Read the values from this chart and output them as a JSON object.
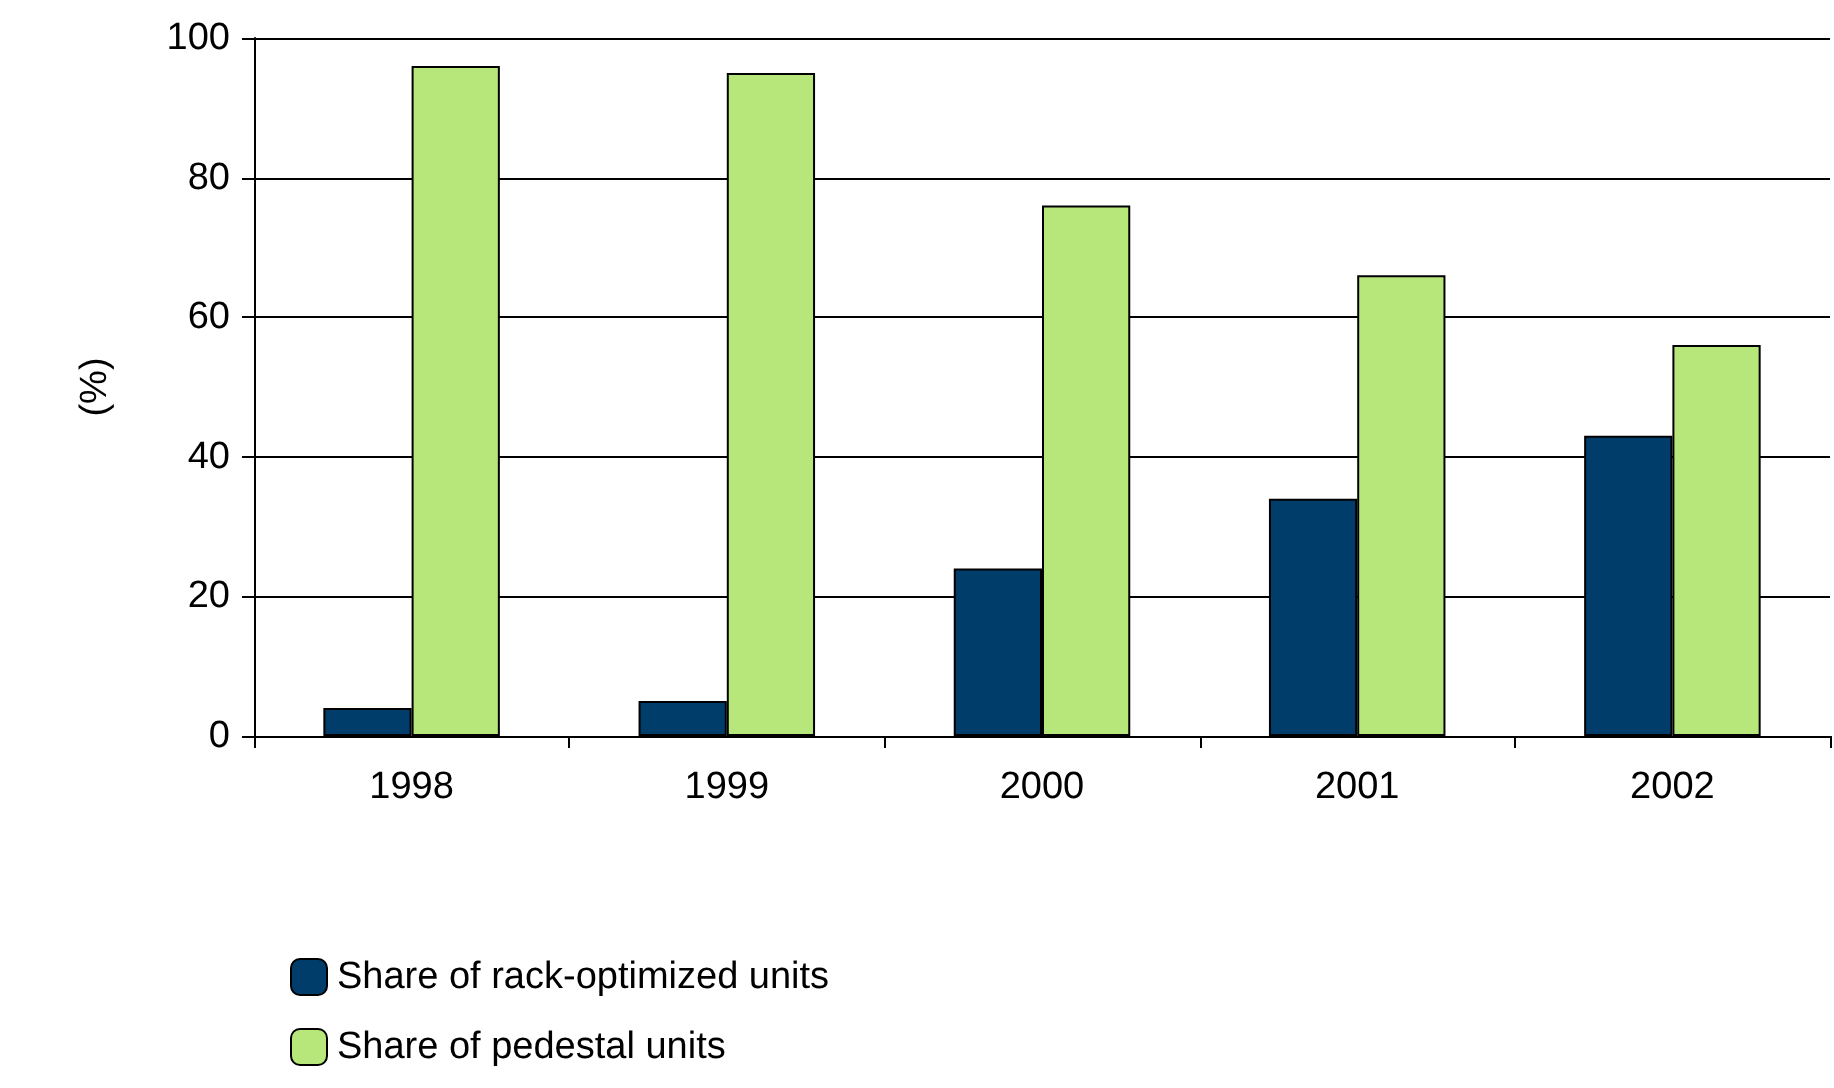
{
  "chart_data": {
    "type": "bar",
    "ylabel": "(%)",
    "categories": [
      "1998",
      "1999",
      "2000",
      "2001",
      "2002"
    ],
    "series": [
      {
        "name": "Share of rack-optimized units",
        "color": "#003d6b",
        "values": [
          4,
          5,
          24,
          34,
          43
        ]
      },
      {
        "name": "Share of pedestal units",
        "color": "#b7e67a",
        "values": [
          96,
          95,
          76,
          66,
          56
        ]
      }
    ],
    "ylim": [
      0,
      100
    ],
    "yticks": [
      0,
      20,
      40,
      60,
      80,
      100
    ],
    "grid": "y",
    "legend": "bottom"
  }
}
